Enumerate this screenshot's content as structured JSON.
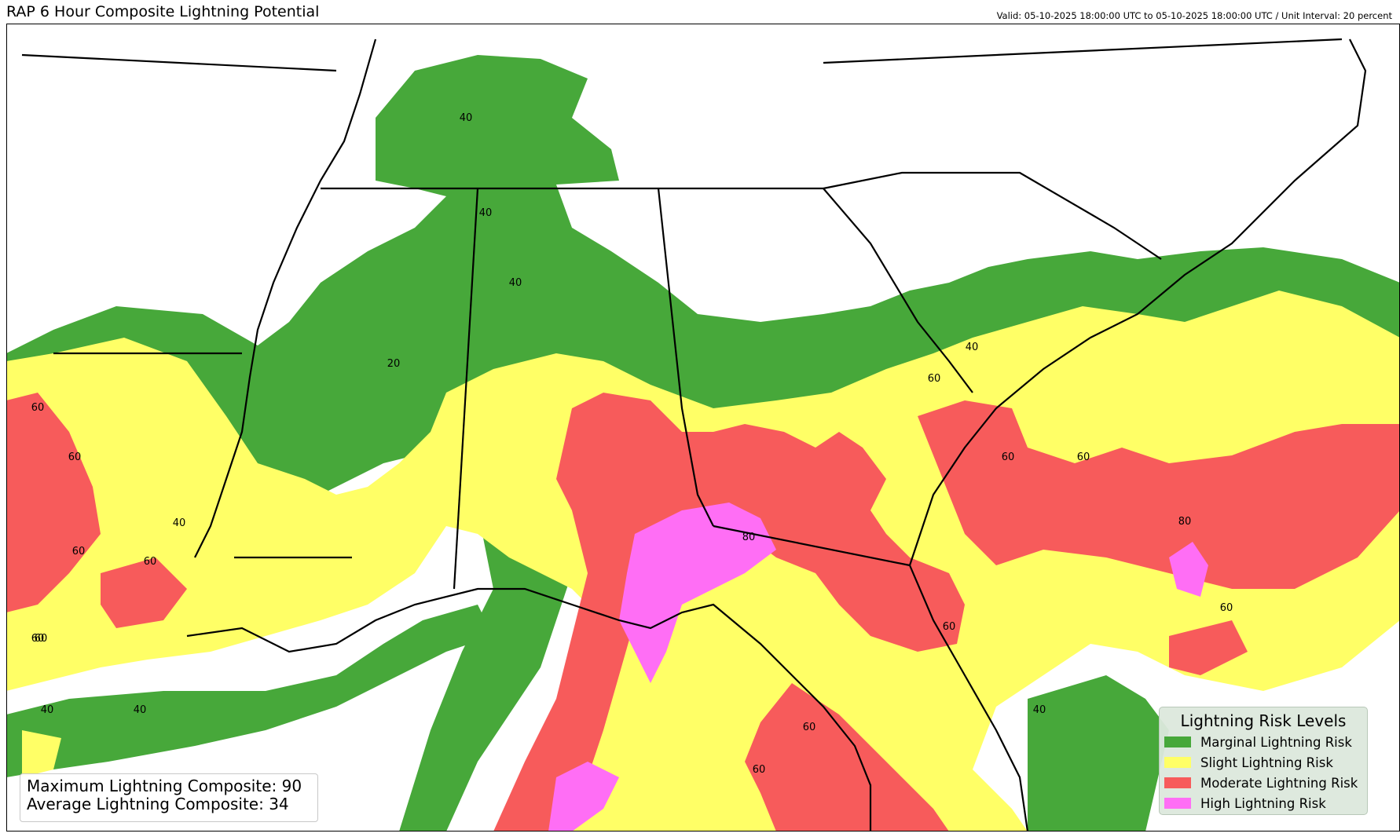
{
  "header": {
    "title": "RAP 6 Hour Composite Lightning Potential",
    "valid_text": "Valid: 05-10-2025 18:00:00 UTC to 05-10-2025 18:00:00 UTC / Unit Interval: 20 percent"
  },
  "colors": {
    "marginal": "#47a83a",
    "slight": "#ffff66",
    "moderate": "#f75b5b",
    "high": "#ff6ef5",
    "border": "#000000"
  },
  "contour_labels": [
    {
      "text": "40"
    },
    {
      "text": "40"
    },
    {
      "text": "40"
    },
    {
      "text": "20"
    },
    {
      "text": "60"
    },
    {
      "text": "60"
    },
    {
      "text": "40"
    },
    {
      "text": "60"
    },
    {
      "text": "60"
    },
    {
      "text": "60"
    },
    {
      "text": "40"
    },
    {
      "text": "40"
    },
    {
      "text": "80"
    },
    {
      "text": "60"
    },
    {
      "text": "40"
    },
    {
      "text": "60"
    },
    {
      "text": "60"
    },
    {
      "text": "60"
    },
    {
      "text": "80"
    },
    {
      "text": "60"
    },
    {
      "text": "60"
    },
    {
      "text": "40"
    },
    {
      "text": "60"
    },
    {
      "text": "60"
    }
  ],
  "stats": {
    "max_line": "Maximum Lightning Composite: 90",
    "avg_line": "Average Lightning Composite: 34"
  },
  "legend": {
    "title": "Lightning Risk Levels",
    "items": [
      {
        "label": "Marginal Lightning Risk",
        "color": "#47a83a"
      },
      {
        "label": "Slight Lightning Risk",
        "color": "#ffff66"
      },
      {
        "label": "Moderate Lightning Risk",
        "color": "#f75b5b"
      },
      {
        "label": "High Lightning Risk",
        "color": "#ff6ef5"
      }
    ]
  }
}
